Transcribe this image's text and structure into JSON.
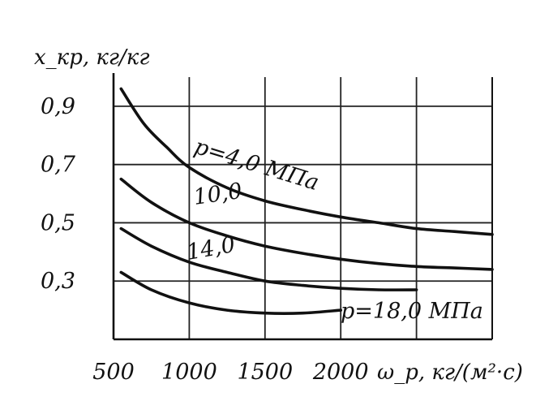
{
  "chart_data": {
    "type": "line",
    "title": "",
    "xlabel": "ω_p, кг/(м²·с)",
    "ylabel": "x_кр, кг/кг",
    "xlim": [
      500,
      3000
    ],
    "ylim": [
      0.1,
      1.0
    ],
    "x_ticks": [
      {
        "value": 500,
        "label": "500"
      },
      {
        "value": 1000,
        "label": "1000"
      },
      {
        "value": 1500,
        "label": "1500"
      },
      {
        "value": 2000,
        "label": "2000"
      }
    ],
    "y_ticks": [
      {
        "value": 0.9,
        "label": "0,9"
      },
      {
        "value": 0.7,
        "label": "0,7"
      },
      {
        "value": 0.5,
        "label": "0,5"
      },
      {
        "value": 0.3,
        "label": "0,3"
      }
    ],
    "grid": true,
    "series": [
      {
        "name": "p=4,0 МПа",
        "x": [
          550,
          700,
          850,
          1000,
          1250,
          1500,
          1750,
          2000,
          2250,
          2500,
          2750,
          3000
        ],
        "values": [
          0.96,
          0.84,
          0.76,
          0.69,
          0.62,
          0.575,
          0.545,
          0.52,
          0.5,
          0.48,
          0.47,
          0.46
        ]
      },
      {
        "name": "10,0",
        "x": [
          550,
          750,
          1000,
          1250,
          1500,
          1750,
          2000,
          2250,
          2500,
          2750,
          3000
        ],
        "values": [
          0.65,
          0.57,
          0.5,
          0.455,
          0.42,
          0.395,
          0.375,
          0.36,
          0.35,
          0.345,
          0.34
        ]
      },
      {
        "name": "14,0",
        "x": [
          550,
          750,
          1000,
          1250,
          1500,
          1750,
          2000,
          2250,
          2500
        ],
        "values": [
          0.48,
          0.42,
          0.365,
          0.33,
          0.3,
          0.285,
          0.275,
          0.27,
          0.27
        ]
      },
      {
        "name": "p=18,0 МПа",
        "x": [
          550,
          750,
          1000,
          1250,
          1500,
          1750,
          2000
        ],
        "values": [
          0.33,
          0.27,
          0.225,
          0.2,
          0.19,
          0.19,
          0.2
        ]
      }
    ]
  }
}
